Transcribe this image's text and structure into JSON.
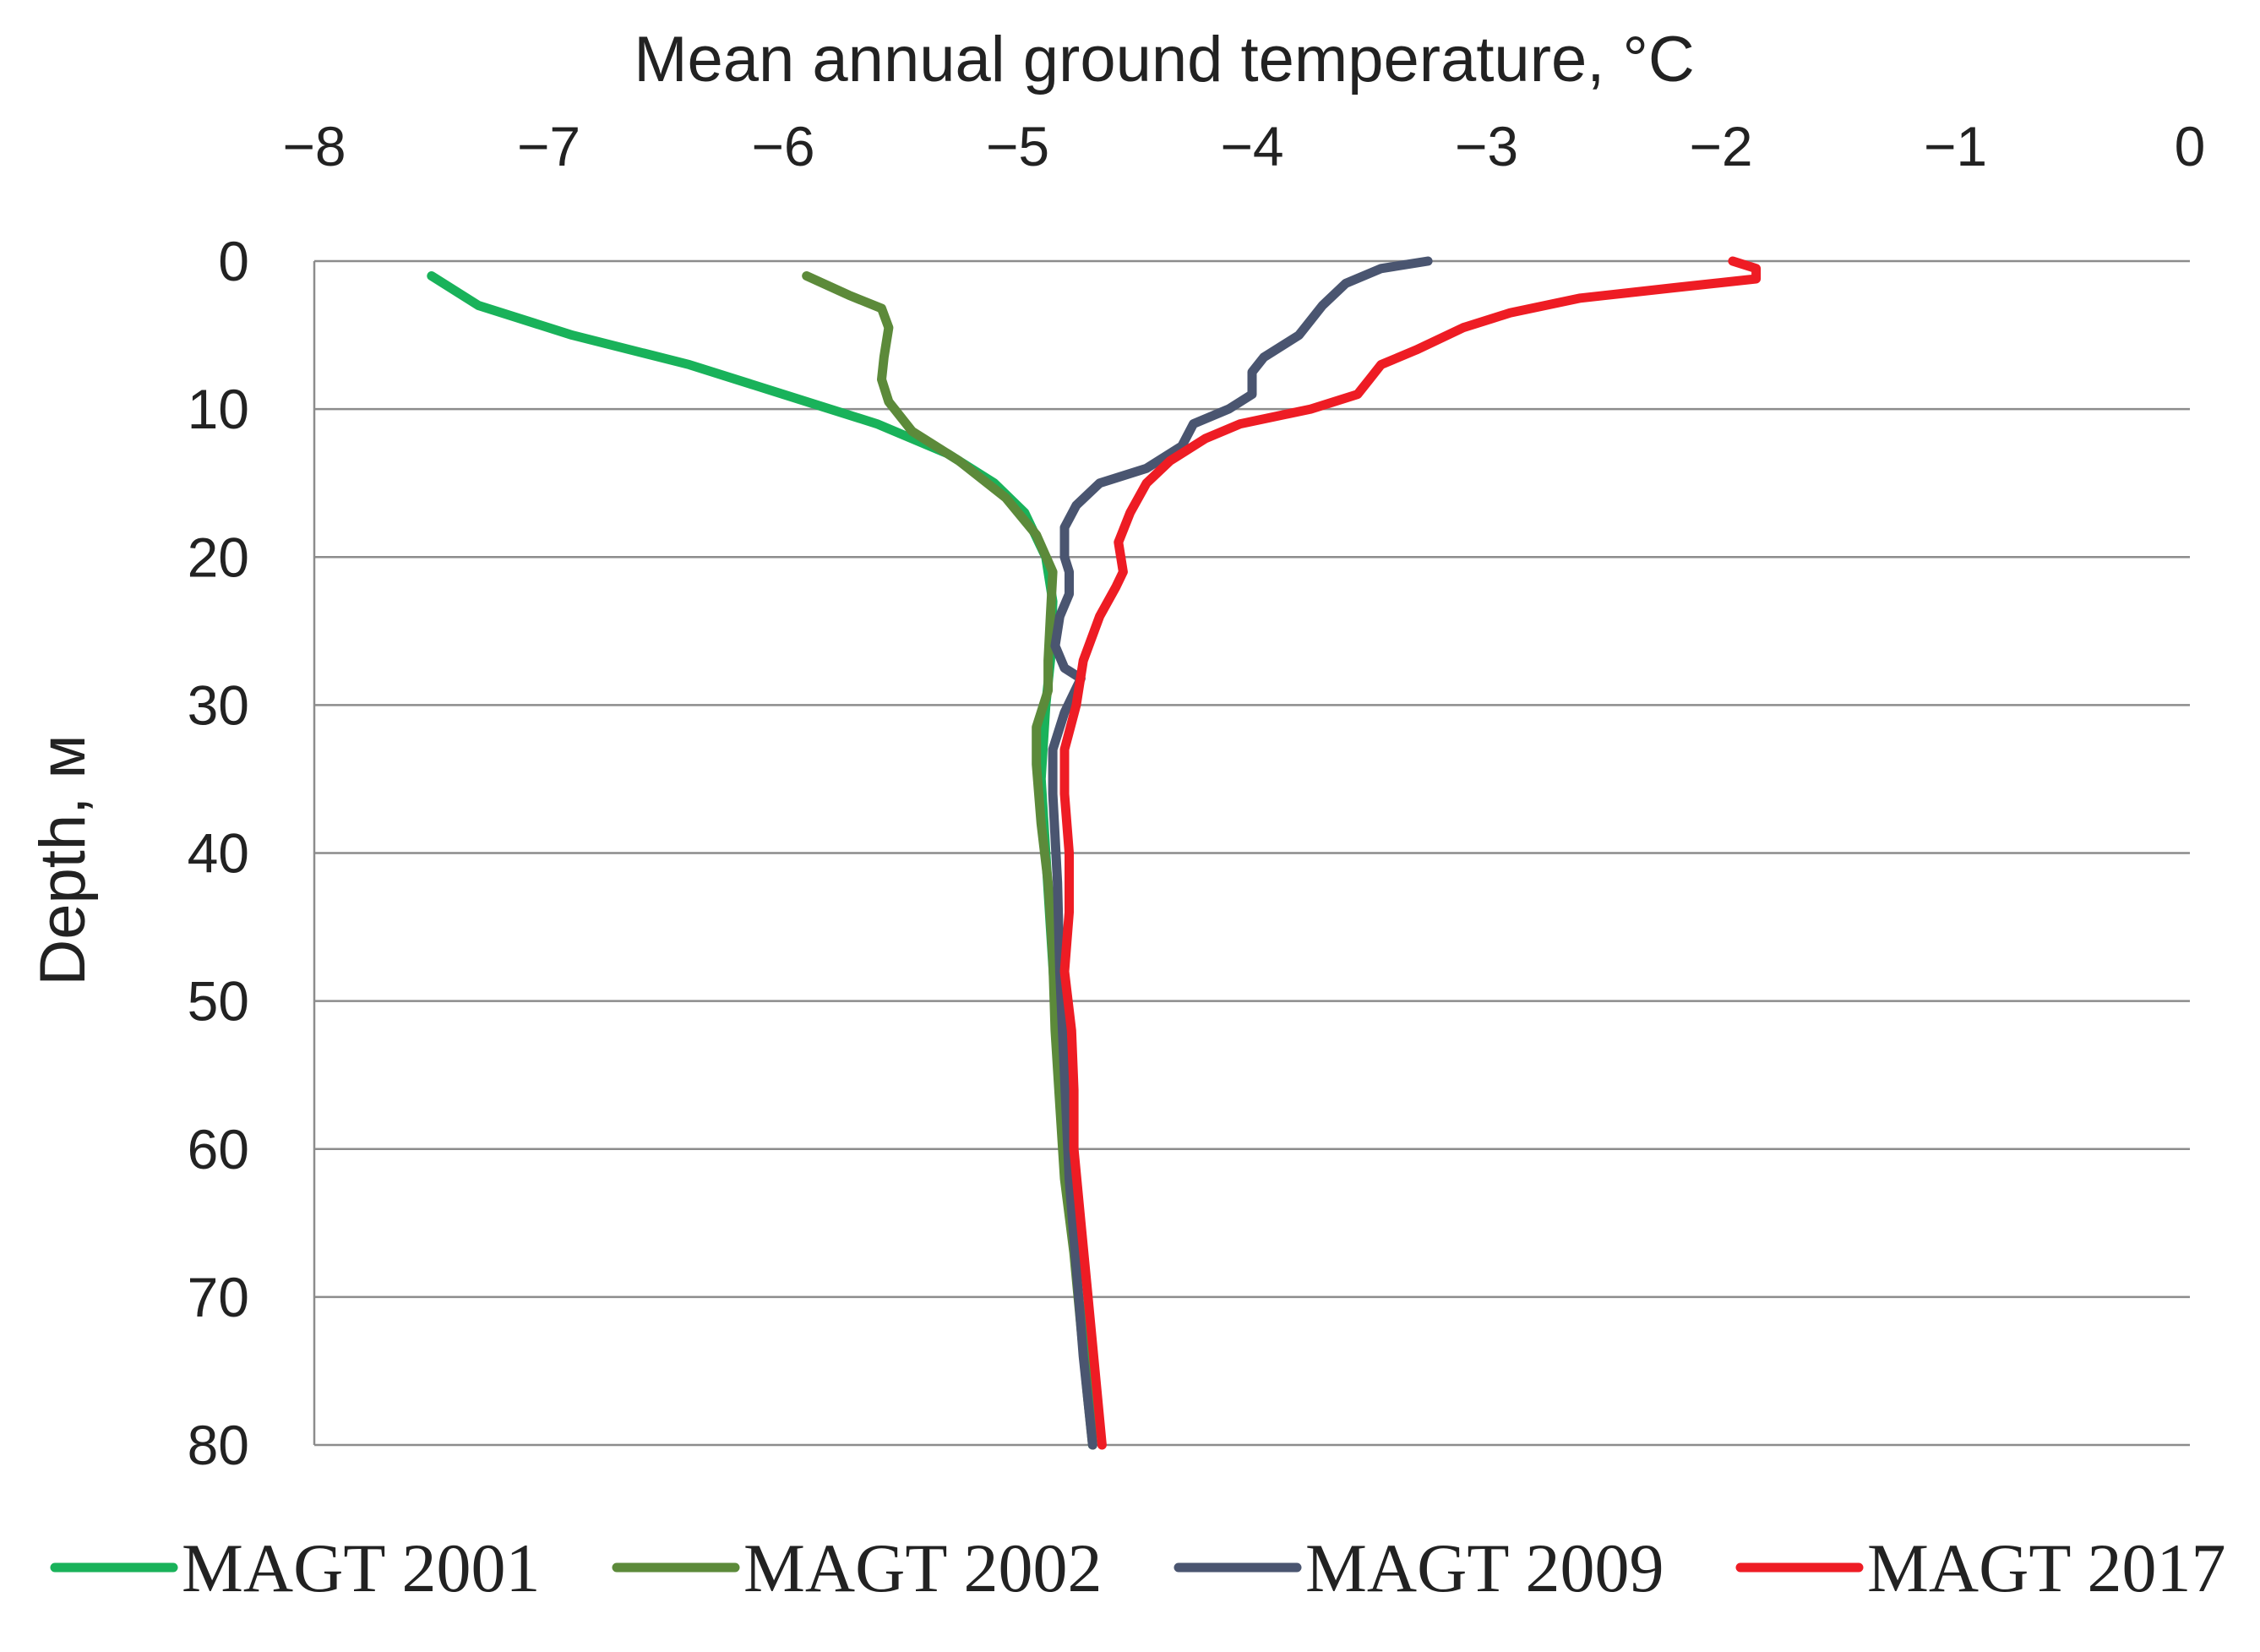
{
  "chart_data": {
    "type": "line",
    "title": "",
    "xlabel": "Mean annual ground temperature, °C",
    "ylabel": "Depth,  м",
    "xlim": [
      -8,
      0
    ],
    "ylim": [
      0,
      80
    ],
    "y_inverted": true,
    "x_axis_position": "top",
    "grid": true,
    "xticks": [
      -8,
      -7,
      -6,
      -5,
      -4,
      -3,
      -2,
      -1,
      0
    ],
    "yticks": [
      0,
      10,
      20,
      30,
      40,
      50,
      60,
      70,
      80
    ],
    "xtick_labels": [
      "−8",
      "−7",
      "−6",
      "−5",
      "−4",
      "−3",
      "−2",
      "−1",
      "0"
    ],
    "ytick_labels": [
      "0",
      "10",
      "20",
      "30",
      "40",
      "50",
      "60",
      "70",
      "80"
    ],
    "legend_position": "bottom",
    "series": [
      {
        "name": "MAGT 2001",
        "color": "#19b25a",
        "points": [
          [
            -7.5,
            1
          ],
          [
            -7.3,
            3
          ],
          [
            -6.9,
            5
          ],
          [
            -6.4,
            7
          ],
          [
            -6.0,
            9
          ],
          [
            -5.6,
            11
          ],
          [
            -5.3,
            13
          ],
          [
            -5.1,
            15
          ],
          [
            -4.97,
            17
          ],
          [
            -4.88,
            20
          ],
          [
            -4.85,
            23
          ],
          [
            -4.86,
            27
          ],
          [
            -4.88,
            30
          ],
          [
            -4.9,
            35
          ],
          [
            -4.88,
            40
          ],
          [
            -4.86,
            45
          ],
          [
            -4.84,
            50
          ],
          [
            -4.82,
            55
          ],
          [
            -4.8,
            60
          ],
          [
            -4.77,
            65
          ],
          [
            -4.74,
            70
          ],
          [
            -4.7,
            75
          ],
          [
            -4.68,
            80
          ]
        ]
      },
      {
        "name": "MAGT 2002",
        "color": "#5c8a3a",
        "points": [
          [
            -5.9,
            1
          ],
          [
            -5.72,
            2.3
          ],
          [
            -5.58,
            3.2
          ],
          [
            -5.55,
            4.5
          ],
          [
            -5.57,
            6.5
          ],
          [
            -5.58,
            8
          ],
          [
            -5.55,
            9.5
          ],
          [
            -5.45,
            11.5
          ],
          [
            -5.25,
            13.5
          ],
          [
            -5.05,
            16
          ],
          [
            -4.92,
            18.5
          ],
          [
            -4.85,
            21
          ],
          [
            -4.86,
            24
          ],
          [
            -4.87,
            27
          ],
          [
            -4.87,
            29
          ],
          [
            -4.92,
            31.5
          ],
          [
            -4.92,
            34
          ],
          [
            -4.9,
            38
          ],
          [
            -4.87,
            42
          ],
          [
            -4.85,
            47
          ],
          [
            -4.84,
            52
          ],
          [
            -4.82,
            57
          ],
          [
            -4.8,
            62
          ],
          [
            -4.76,
            67
          ],
          [
            -4.73,
            72
          ],
          [
            -4.7,
            77
          ],
          [
            -4.68,
            80
          ]
        ]
      },
      {
        "name": "MAGT 2009",
        "color": "#4a5570",
        "points": [
          [
            -3.25,
            0
          ],
          [
            -3.45,
            0.5
          ],
          [
            -3.6,
            1.5
          ],
          [
            -3.7,
            3
          ],
          [
            -3.8,
            5
          ],
          [
            -3.95,
            6.5
          ],
          [
            -4.0,
            7.5
          ],
          [
            -4.0,
            9
          ],
          [
            -4.1,
            10
          ],
          [
            -4.25,
            11
          ],
          [
            -4.3,
            12.5
          ],
          [
            -4.45,
            14
          ],
          [
            -4.65,
            15
          ],
          [
            -4.75,
            16.5
          ],
          [
            -4.8,
            18
          ],
          [
            -4.8,
            20
          ],
          [
            -4.78,
            21
          ],
          [
            -4.78,
            22.5
          ],
          [
            -4.82,
            24
          ],
          [
            -4.84,
            26
          ],
          [
            -4.8,
            27.5
          ],
          [
            -4.73,
            28.2
          ],
          [
            -4.8,
            30.5
          ],
          [
            -4.85,
            33
          ],
          [
            -4.85,
            36
          ],
          [
            -4.83,
            42
          ],
          [
            -4.82,
            48
          ],
          [
            -4.8,
            55
          ],
          [
            -4.78,
            62
          ],
          [
            -4.75,
            68
          ],
          [
            -4.72,
            74
          ],
          [
            -4.68,
            80
          ]
        ]
      },
      {
        "name": "MAGT 2017",
        "color": "#ee1c24",
        "points": [
          [
            -1.95,
            0
          ],
          [
            -1.85,
            0.5
          ],
          [
            -1.85,
            1.2
          ],
          [
            -2.2,
            1.8
          ],
          [
            -2.6,
            2.5
          ],
          [
            -2.9,
            3.5
          ],
          [
            -3.1,
            4.5
          ],
          [
            -3.3,
            6
          ],
          [
            -3.45,
            7
          ],
          [
            -3.5,
            8
          ],
          [
            -3.55,
            9
          ],
          [
            -3.75,
            10
          ],
          [
            -4.05,
            11
          ],
          [
            -4.2,
            12
          ],
          [
            -4.35,
            13.5
          ],
          [
            -4.45,
            15
          ],
          [
            -4.52,
            17
          ],
          [
            -4.57,
            19
          ],
          [
            -4.55,
            21
          ],
          [
            -4.58,
            22
          ],
          [
            -4.65,
            24
          ],
          [
            -4.72,
            27
          ],
          [
            -4.75,
            30
          ],
          [
            -4.8,
            33
          ],
          [
            -4.8,
            36
          ],
          [
            -4.78,
            40
          ],
          [
            -4.78,
            44
          ],
          [
            -4.8,
            48
          ],
          [
            -4.77,
            52
          ],
          [
            -4.76,
            56
          ],
          [
            -4.76,
            60
          ],
          [
            -4.73,
            65
          ],
          [
            -4.7,
            70
          ],
          [
            -4.67,
            75
          ],
          [
            -4.64,
            80
          ]
        ]
      }
    ]
  }
}
